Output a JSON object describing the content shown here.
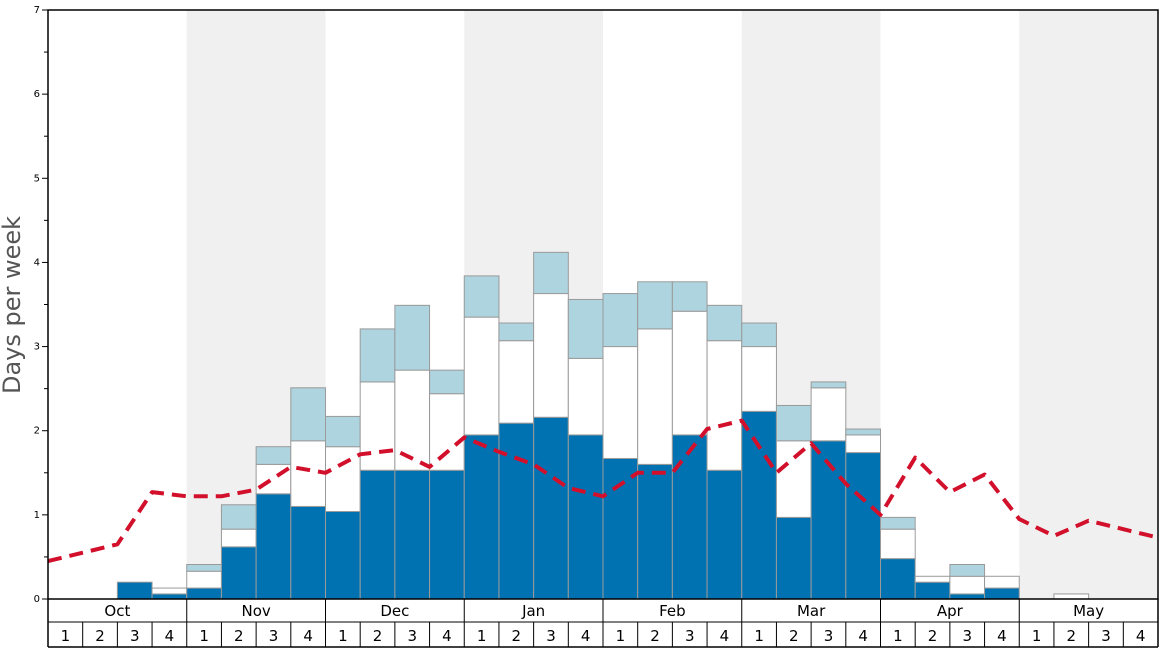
{
  "chart_data": {
    "type": "bar",
    "stacked": true,
    "ylabel": "Days per week",
    "ylim": [
      0,
      7
    ],
    "yticks": [
      0,
      1,
      2,
      3,
      4,
      5,
      6,
      7
    ],
    "months": [
      "Oct",
      "Nov",
      "Dec",
      "Jan",
      "Feb",
      "Mar",
      "Apr",
      "May"
    ],
    "weeks_per_month": [
      "1",
      "2",
      "3",
      "4"
    ],
    "shaded_months": [
      "Nov",
      "Jan",
      "Mar",
      "May"
    ],
    "series": [
      {
        "color": "#0072b2",
        "values": [
          0,
          0,
          0.2,
          0.06,
          0.13,
          0.62,
          1.25,
          1.1,
          1.04,
          1.53,
          1.53,
          1.53,
          1.95,
          2.09,
          2.16,
          1.95,
          1.67,
          1.6,
          1.95,
          1.53,
          2.23,
          0.97,
          1.88,
          1.74,
          0.48,
          0.2,
          0.06,
          0.13,
          0,
          0,
          0,
          0
        ]
      },
      {
        "color": "#ffffff",
        "values": [
          0,
          0,
          0,
          0.07,
          0.2,
          0.21,
          0.35,
          0.78,
          0.77,
          1.05,
          1.19,
          0.91,
          1.4,
          0.98,
          1.47,
          0.91,
          1.33,
          1.61,
          1.47,
          1.54,
          0.77,
          0.91,
          0.63,
          0.21,
          0.35,
          0.07,
          0.21,
          0.14,
          0,
          0.06,
          0,
          0
        ]
      },
      {
        "color": "#aed4df",
        "values": [
          0,
          0,
          0,
          0,
          0.08,
          0.29,
          0.21,
          0.63,
          0.36,
          0.63,
          0.77,
          0.28,
          0.49,
          0.21,
          0.49,
          0.7,
          0.63,
          0.56,
          0.35,
          0.42,
          0.28,
          0.42,
          0.07,
          0.07,
          0.14,
          0,
          0.14,
          0,
          0,
          0,
          0,
          0
        ]
      }
    ],
    "line": {
      "color": "#d2102b",
      "style": "dashed",
      "values": [
        0.45,
        0.55,
        0.65,
        1.27,
        1.22,
        1.22,
        1.3,
        1.57,
        1.5,
        1.72,
        1.77,
        1.57,
        1.92,
        1.75,
        1.6,
        1.32,
        1.22,
        1.5,
        1.5,
        2.02,
        2.12,
        1.5,
        1.85,
        1.37,
        1.0,
        1.68,
        1.27,
        1.48,
        0.95,
        0.75,
        0.93,
        0.83,
        0.73
      ]
    },
    "grid": false,
    "legend": "none"
  }
}
